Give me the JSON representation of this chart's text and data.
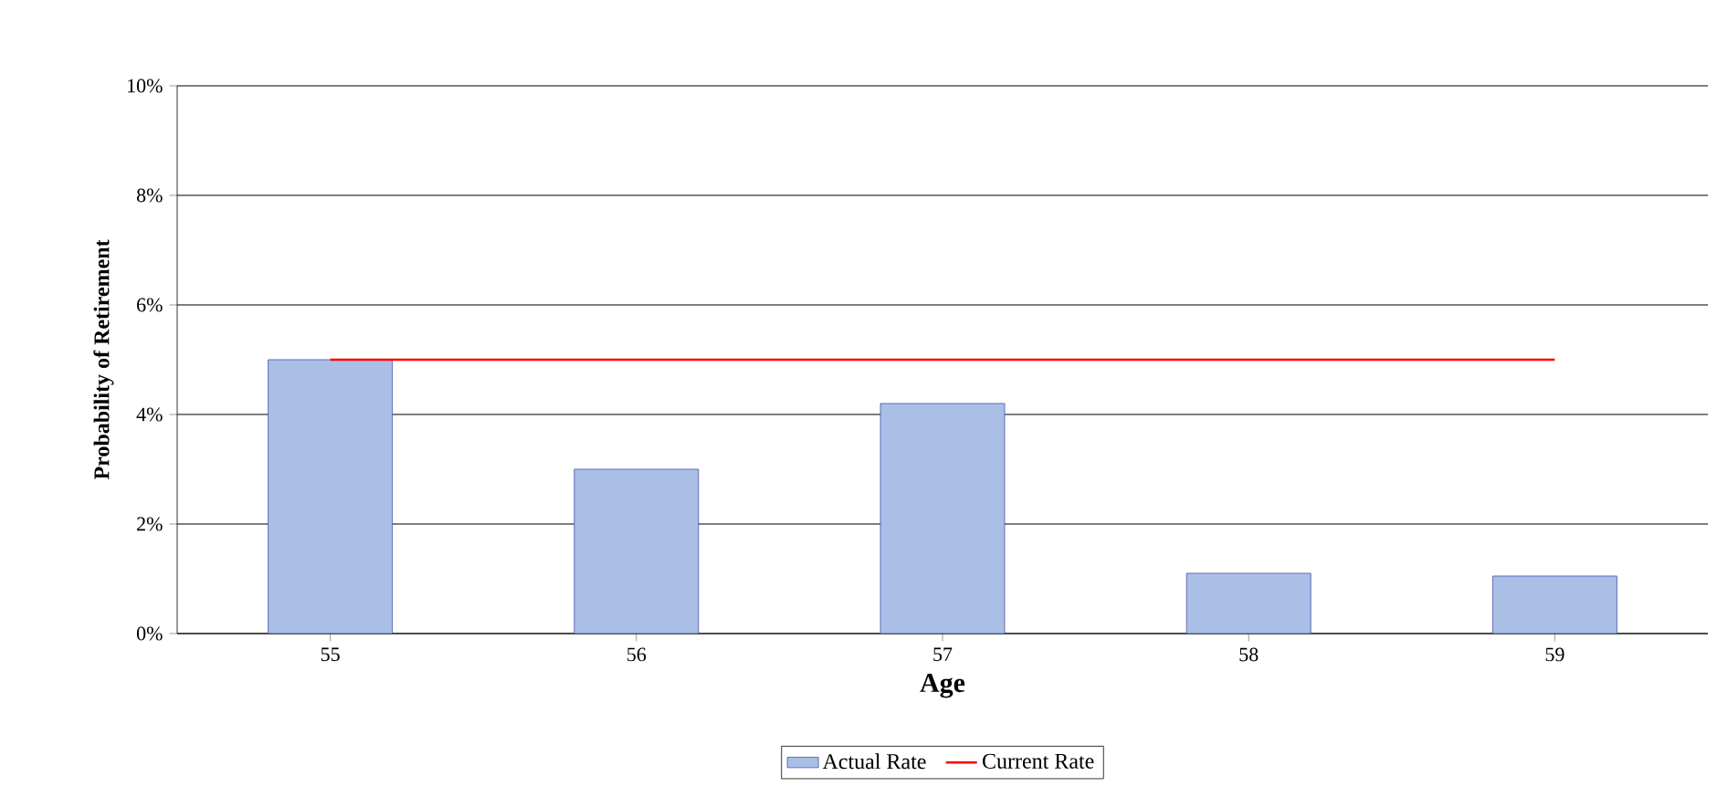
{
  "chart_data": {
    "type": "bar",
    "xlabel": "Age",
    "ylabel": "Probability of Retirement",
    "categories": [
      "55",
      "56",
      "57",
      "58",
      "59"
    ],
    "series": [
      {
        "name": "Actual Rate",
        "color": "#a9bfe6",
        "values": [
          5.0,
          3.0,
          4.2,
          1.1,
          1.05
        ]
      },
      {
        "name": "Current Rate",
        "type": "line",
        "color": "#ff0000",
        "values": [
          5,
          5,
          5,
          5,
          5
        ]
      }
    ],
    "ylim": [
      0,
      10
    ],
    "yticks": [
      {
        "value": 0,
        "label": "0%"
      },
      {
        "value": 2,
        "label": "2%"
      },
      {
        "value": 4,
        "label": "4%"
      },
      {
        "value": 6,
        "label": "6%"
      },
      {
        "value": 8,
        "label": "8%"
      },
      {
        "value": 10,
        "label": "10%"
      }
    ],
    "grid": "y",
    "legend": "bottom"
  }
}
